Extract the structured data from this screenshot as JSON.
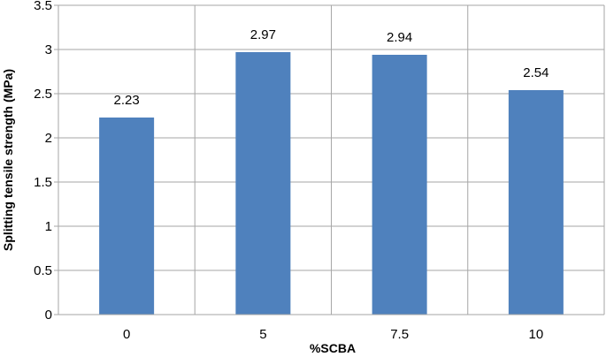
{
  "chart_data": {
    "type": "bar",
    "categories": [
      "0",
      "5",
      "7.5",
      "10"
    ],
    "values": [
      2.23,
      2.97,
      2.94,
      2.54
    ],
    "data_labels": [
      "2.23",
      "2.97",
      "2.94",
      "2.54"
    ],
    "title": "",
    "xlabel": "%SCBA",
    "ylabel": "Splitting tensile strength (MPa)",
    "ylim": [
      0,
      3.5
    ],
    "yticks": [
      0,
      0.5,
      1,
      1.5,
      2,
      2.5,
      3,
      3.5
    ],
    "ytick_labels": [
      "0",
      "0.5",
      "1",
      "1.5",
      "2",
      "2.5",
      "3",
      "3.5"
    ],
    "grid": "horizontal and vertical",
    "legend": "none",
    "bar_color": "#4F81BD",
    "grid_color": "#A6A6A6"
  }
}
